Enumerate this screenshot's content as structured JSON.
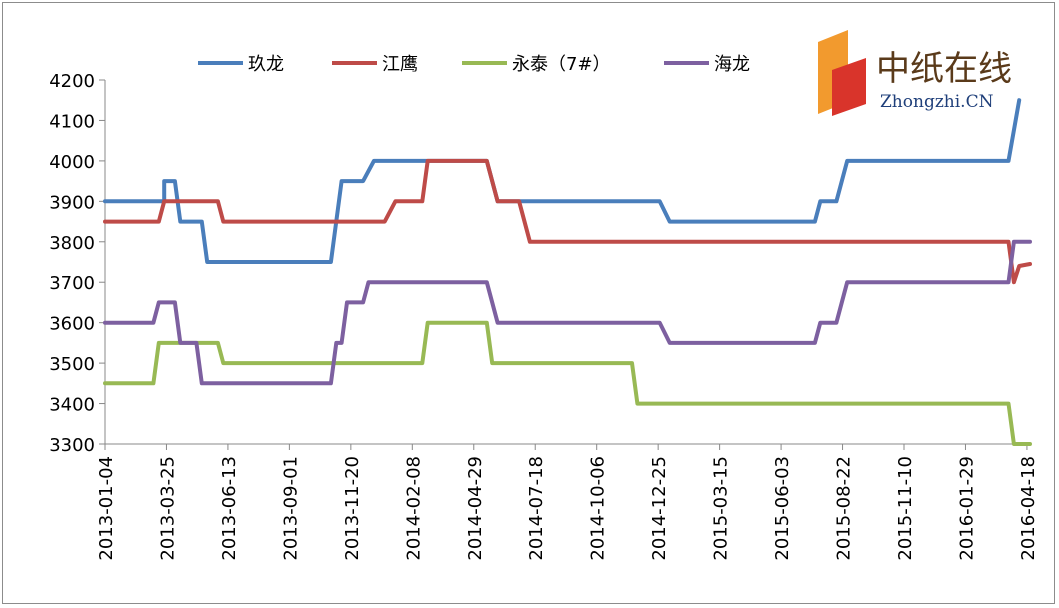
{
  "chart_data": {
    "type": "line",
    "ylim": [
      3300,
      4200
    ],
    "yticks": [
      3300,
      3400,
      3500,
      3600,
      3700,
      3800,
      3900,
      4000,
      4100,
      4200
    ],
    "x_start": "2013-01-04",
    "x_end": "2016-04-22",
    "xtick_labels": [
      "2013-01-04",
      "2013-03-25",
      "2013-06-13",
      "2013-09-01",
      "2013-11-20",
      "2014-02-08",
      "2014-04-29",
      "2014-07-18",
      "2014-10-06",
      "2014-12-25",
      "2015-03-15",
      "2015-06-03",
      "2015-08-22",
      "2015-11-10",
      "2016-01-29",
      "2016-04-18"
    ],
    "grid": false,
    "legend_position": "top",
    "series": [
      {
        "name": "玖龙",
        "color": "#4a7ebb",
        "points": [
          [
            "2013-01-04",
            3900
          ],
          [
            "2013-03-22",
            3900
          ],
          [
            "2013-03-22",
            3950
          ],
          [
            "2013-04-05",
            3950
          ],
          [
            "2013-04-12",
            3850
          ],
          [
            "2013-05-10",
            3850
          ],
          [
            "2013-05-17",
            3750
          ],
          [
            "2013-10-25",
            3750
          ],
          [
            "2013-11-08",
            3950
          ],
          [
            "2013-12-06",
            3950
          ],
          [
            "2013-12-20",
            4000
          ],
          [
            "2014-05-16",
            4000
          ],
          [
            "2014-05-30",
            3900
          ],
          [
            "2014-12-27",
            3900
          ],
          [
            "2015-01-09",
            3850
          ],
          [
            "2015-07-17",
            3850
          ],
          [
            "2015-07-24",
            3900
          ],
          [
            "2015-08-14",
            3900
          ],
          [
            "2015-08-28",
            4000
          ],
          [
            "2016-03-25",
            4000
          ],
          [
            "2016-04-08",
            4150
          ]
        ]
      },
      {
        "name": "江鹰",
        "color": "#be4b48",
        "points": [
          [
            "2013-01-04",
            3850
          ],
          [
            "2013-03-15",
            3850
          ],
          [
            "2013-03-22",
            3900
          ],
          [
            "2013-05-31",
            3900
          ],
          [
            "2013-06-07",
            3850
          ],
          [
            "2014-01-03",
            3850
          ],
          [
            "2014-01-17",
            3900
          ],
          [
            "2014-02-21",
            3900
          ],
          [
            "2014-02-28",
            4000
          ],
          [
            "2014-05-16",
            4000
          ],
          [
            "2014-05-30",
            3900
          ],
          [
            "2014-06-27",
            3900
          ],
          [
            "2014-07-11",
            3800
          ],
          [
            "2016-03-25",
            3800
          ],
          [
            "2016-04-01",
            3700
          ],
          [
            "2016-04-08",
            3740
          ],
          [
            "2016-04-22",
            3745
          ]
        ]
      },
      {
        "name": "永泰（7#）",
        "color": "#98b954",
        "points": [
          [
            "2013-01-04",
            3450
          ],
          [
            "2013-03-08",
            3450
          ],
          [
            "2013-03-15",
            3550
          ],
          [
            "2013-05-31",
            3550
          ],
          [
            "2013-06-07",
            3500
          ],
          [
            "2014-02-21",
            3500
          ],
          [
            "2014-02-28",
            3600
          ],
          [
            "2014-05-16",
            3600
          ],
          [
            "2014-05-23",
            3500
          ],
          [
            "2014-11-21",
            3500
          ],
          [
            "2014-11-28",
            3400
          ],
          [
            "2016-03-25",
            3400
          ],
          [
            "2016-04-01",
            3300
          ],
          [
            "2016-04-22",
            3300
          ]
        ]
      },
      {
        "name": "海龙",
        "color": "#7d60a0",
        "points": [
          [
            "2013-01-04",
            3600
          ],
          [
            "2013-03-08",
            3600
          ],
          [
            "2013-03-15",
            3650
          ],
          [
            "2013-04-05",
            3650
          ],
          [
            "2013-04-12",
            3550
          ],
          [
            "2013-05-03",
            3550
          ],
          [
            "2013-05-10",
            3450
          ],
          [
            "2013-10-25",
            3450
          ],
          [
            "2013-11-01",
            3550
          ],
          [
            "2013-11-08",
            3550
          ],
          [
            "2013-11-15",
            3650
          ],
          [
            "2013-12-06",
            3650
          ],
          [
            "2013-12-13",
            3700
          ],
          [
            "2014-05-16",
            3700
          ],
          [
            "2014-05-30",
            3600
          ],
          [
            "2014-12-27",
            3600
          ],
          [
            "2015-01-09",
            3550
          ],
          [
            "2015-07-17",
            3550
          ],
          [
            "2015-07-24",
            3600
          ],
          [
            "2015-08-14",
            3600
          ],
          [
            "2015-08-28",
            3700
          ],
          [
            "2016-03-25",
            3700
          ],
          [
            "2016-04-01",
            3800
          ],
          [
            "2016-04-22",
            3800
          ]
        ]
      }
    ]
  },
  "logo": {
    "text_cn": "中纸在线",
    "text_en": "Zhongzhi.CN",
    "colors": {
      "mark_orange": "#f29a2e",
      "mark_red": "#d9342b"
    }
  }
}
